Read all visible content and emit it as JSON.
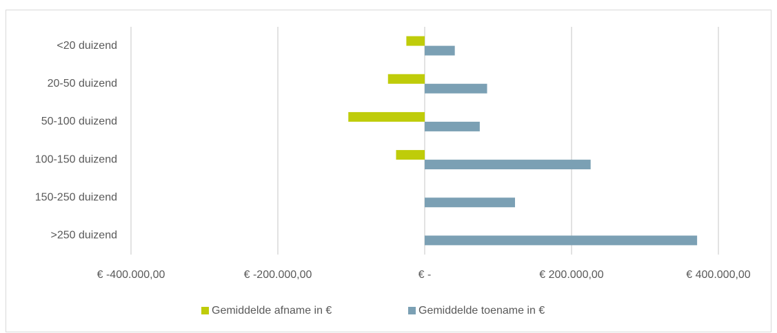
{
  "chart_data": {
    "type": "hbar",
    "categories": [
      "<20 duizend",
      "20-50 duizend",
      "50-100 duizend",
      "100-150 duizend",
      "150-250 duizend",
      ">250 duizend"
    ],
    "series": [
      {
        "name": "Gemiddelde afname in €",
        "color": "#bfcc0a",
        "values": [
          -25000,
          -50000,
          -104000,
          -39000,
          null,
          null
        ]
      },
      {
        "name": "Gemiddelde toename in €",
        "color": "#7ba0b4",
        "values": [
          41000,
          85000,
          75000,
          226000,
          123000,
          371000
        ]
      }
    ],
    "xlim": [
      -400000,
      400000
    ],
    "xticks": [
      {
        "value": -400000,
        "label": "€ -400.000,00"
      },
      {
        "value": -200000,
        "label": "€ -200.000,00"
      },
      {
        "value": 0,
        "label": "€ -"
      },
      {
        "value": 200000,
        "label": "€ 200.000,00"
      },
      {
        "value": 400000,
        "label": "€ 400.000,00"
      }
    ],
    "grid": true,
    "legend": "bottom"
  }
}
